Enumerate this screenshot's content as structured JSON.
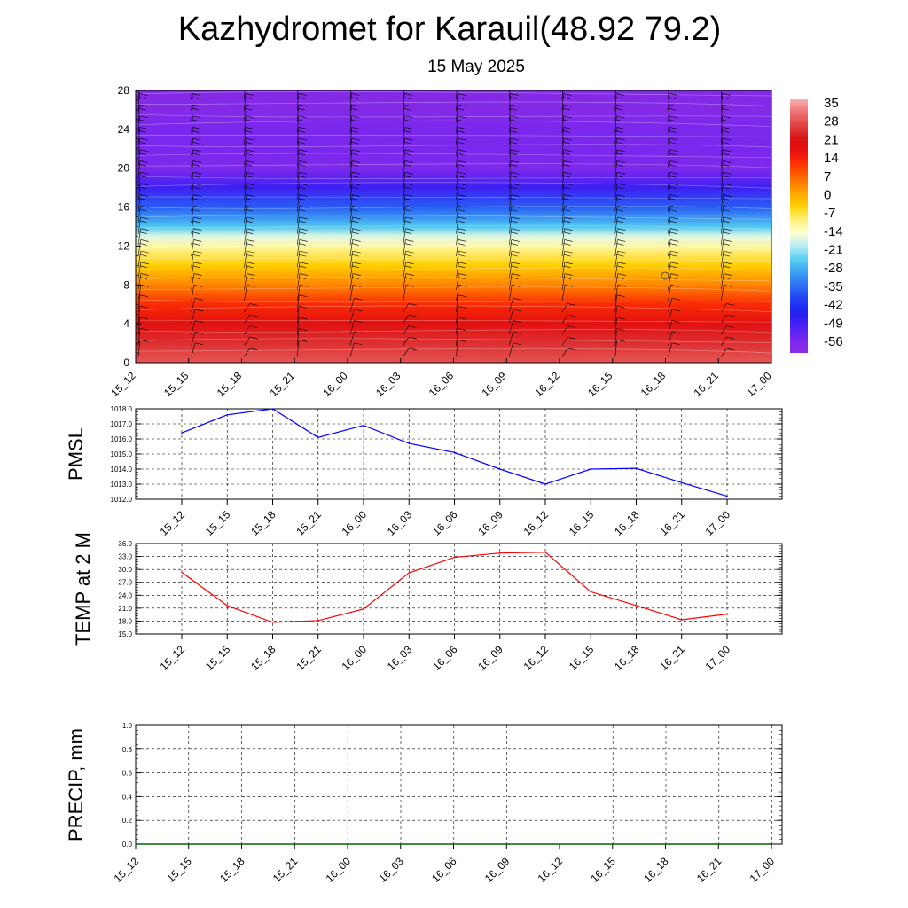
{
  "title": "Kazhydromet for Karauil(48.92 79.2)",
  "subtitle": "15 May 2025",
  "time_labels": [
    "15_12",
    "15_15",
    "15_18",
    "15_21",
    "16_00",
    "16_03",
    "16_06",
    "16_09",
    "16_12",
    "16_15",
    "16_18",
    "16_21",
    "17_00"
  ],
  "colors": {
    "pmsl_line": "#0000ff",
    "temp_line": "#ff0000",
    "precip_line": "#006400",
    "grid": "#000000",
    "colormap": [
      "#8a2be2",
      "#7a28ee",
      "#4b1ff5",
      "#2222f0",
      "#1e3cf2",
      "#2e6ef5",
      "#3aa0f5",
      "#55d0f0",
      "#b9ecf7",
      "#ffffd2",
      "#fff07a",
      "#ffd000",
      "#ffa500",
      "#ff7000",
      "#ff3a00",
      "#ee1010",
      "#d61010",
      "#e04040",
      "#ee7070",
      "#f7b0b0"
    ]
  },
  "chart_data": [
    {
      "type": "heatmap",
      "xlabel": "",
      "ylabel": "",
      "x": [
        "15_12",
        "15_15",
        "15_18",
        "15_21",
        "16_00",
        "16_03",
        "16_06",
        "16_09",
        "16_12",
        "16_15",
        "16_18",
        "16_21",
        "17_00"
      ],
      "y_ticks": [
        0,
        4,
        8,
        12,
        16,
        20,
        24,
        28
      ],
      "ylim": [
        0,
        28
      ],
      "colorbar_labels": [
        "35",
        "28",
        "21",
        "14",
        "7",
        "0",
        "-7",
        "-14",
        "-21",
        "-28",
        "-35",
        "-42",
        "-49",
        "-56"
      ],
      "colorbar_range": [
        -60,
        38
      ],
      "temperature_profile": [
        {
          "z": 0,
          "t": 30
        },
        {
          "z": 2,
          "t": 26
        },
        {
          "z": 4,
          "t": 20
        },
        {
          "z": 6,
          "t": 14
        },
        {
          "z": 8,
          "t": 5
        },
        {
          "z": 10,
          "t": -3
        },
        {
          "z": 12,
          "t": -11
        },
        {
          "z": 13,
          "t": -16
        },
        {
          "z": 14,
          "t": -25
        },
        {
          "z": 16,
          "t": -36
        },
        {
          "z": 18,
          "t": -48
        },
        {
          "z": 20,
          "t": -56
        },
        {
          "z": 22,
          "t": -55
        },
        {
          "z": 24,
          "t": -55
        },
        {
          "z": 26,
          "t": -58
        },
        {
          "z": 28,
          "t": -58
        }
      ],
      "wind_barbs": true,
      "grid": false
    },
    {
      "type": "line",
      "ylabel": "PMSL",
      "x": [
        "15_12",
        "15_15",
        "15_18",
        "15_21",
        "16_00",
        "16_03",
        "16_06",
        "16_09",
        "16_12",
        "16_15",
        "16_18",
        "16_21",
        "17_00"
      ],
      "series": [
        {
          "values": [
            1016.4,
            1017.6,
            1018.0,
            1016.1,
            1016.9,
            1015.7,
            1015.1,
            1014.0,
            1013.0,
            1014.0,
            1014.05,
            1013.1,
            1012.2
          ]
        }
      ],
      "y_ticks": [
        "1012.0",
        "1013.0",
        "1014.0",
        "1015.0",
        "1016.0",
        "1017.0",
        "1018.0"
      ],
      "ylim": [
        1012.0,
        1018.0
      ],
      "grid": true
    },
    {
      "type": "line",
      "ylabel": "TEMP at 2 M",
      "x": [
        "15_12",
        "15_15",
        "15_18",
        "15_21",
        "16_00",
        "16_03",
        "16_06",
        "16_09",
        "16_12",
        "16_15",
        "16_18",
        "16_21",
        "17_00"
      ],
      "series": [
        {
          "values": [
            29.3,
            21.6,
            17.7,
            18.1,
            20.8,
            29.2,
            32.8,
            33.8,
            34.0,
            24.8,
            21.6,
            18.3,
            19.6
          ]
        }
      ],
      "y_ticks": [
        "15.0",
        "18.0",
        "21.0",
        "24.0",
        "27.0",
        "30.0",
        "33.0",
        "36.0"
      ],
      "ylim": [
        15.0,
        36.0
      ],
      "grid": true
    },
    {
      "type": "line",
      "ylabel": "PRECIP, mm",
      "x": [
        "15_12",
        "15_15",
        "15_18",
        "15_21",
        "16_00",
        "16_03",
        "16_06",
        "16_09",
        "16_12",
        "16_15",
        "16_18",
        "16_21",
        "17_00"
      ],
      "series": [
        {
          "values": [
            0,
            0,
            0,
            0,
            0,
            0,
            0,
            0,
            0,
            0,
            0,
            0,
            0
          ]
        }
      ],
      "y_ticks": [
        "0.0",
        "0.2",
        "0.4",
        "0.6",
        "0.8",
        "1.0"
      ],
      "ylim": [
        0.0,
        1.0
      ],
      "grid": true
    }
  ]
}
